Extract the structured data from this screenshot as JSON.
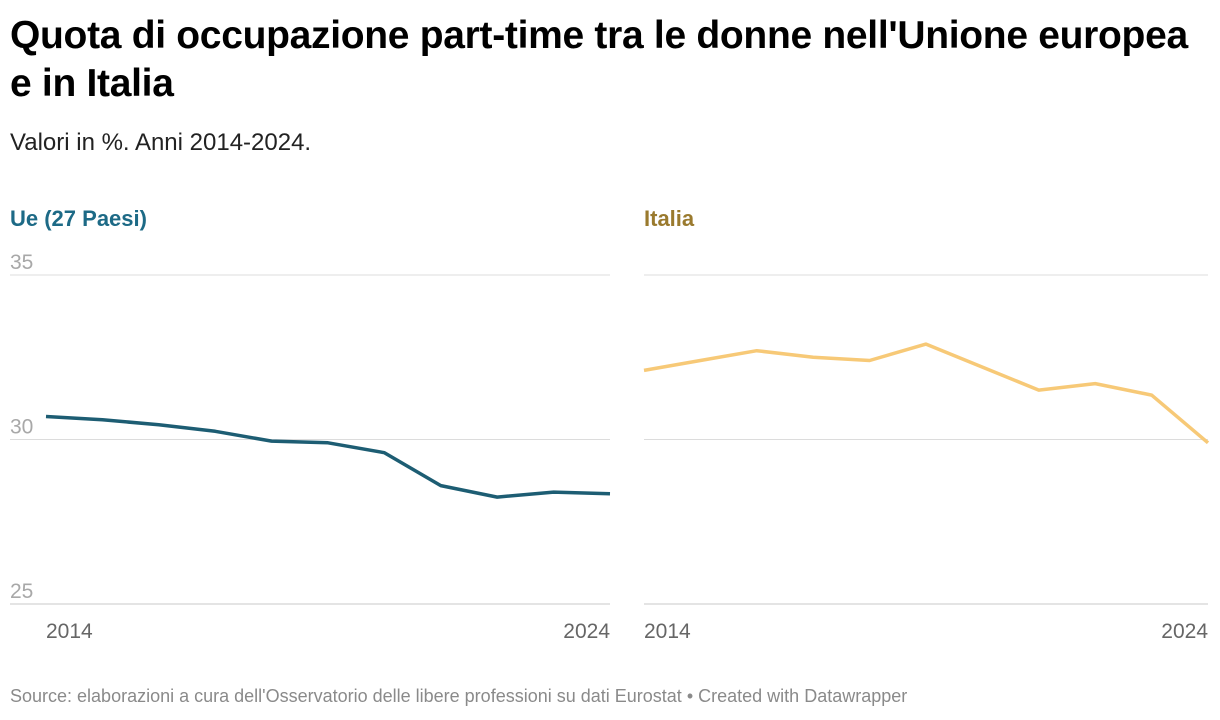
{
  "title": "Quota di occupazione part-time tra le donne nell'Unione europea e in Italia",
  "subtitle": "Valori in %. Anni 2014-2024.",
  "footer": {
    "source": "Source: elaborazioni a cura dell'Osservatorio delle libere professioni su dati Eurostat",
    "separator": "•",
    "credit": "Created with Datawrapper"
  },
  "colors": {
    "eu_line": "#1d5d73",
    "italy_line": "#f7c977",
    "eu_title": "#1d6a86",
    "italy_title": "#9a7a2e",
    "grid": "#dcdcdc",
    "baseline": "#c8c8c8",
    "tick_y": "#a8a8a8",
    "tick_x": "#666666"
  },
  "chart_data": [
    {
      "type": "line",
      "title": "Ue (27 Paesi)",
      "x": [
        2014,
        2015,
        2016,
        2017,
        2018,
        2019,
        2020,
        2021,
        2022,
        2023,
        2024
      ],
      "series": [
        {
          "name": "Ue (27 Paesi)",
          "values": [
            30.7,
            30.6,
            30.45,
            30.25,
            29.95,
            29.9,
            29.6,
            28.6,
            28.25,
            28.4,
            28.35
          ]
        }
      ],
      "x_tick_labels": [
        "2014",
        "2024"
      ],
      "y_ticks": [
        25,
        30,
        35
      ],
      "y_tick_labels": [
        "25",
        "30",
        "35"
      ],
      "ylim": [
        25,
        35
      ],
      "grid": true
    },
    {
      "type": "line",
      "title": "Italia",
      "x": [
        2014,
        2015,
        2016,
        2017,
        2018,
        2019,
        2020,
        2021,
        2022,
        2023,
        2024
      ],
      "series": [
        {
          "name": "Italia",
          "values": [
            32.1,
            32.4,
            32.7,
            32.5,
            32.4,
            32.9,
            32.2,
            31.5,
            31.7,
            31.35,
            29.9
          ]
        }
      ],
      "x_tick_labels": [
        "2014",
        "2024"
      ],
      "y_ticks": [
        25,
        30,
        35
      ],
      "ylim": [
        25,
        35
      ],
      "grid": true
    }
  ]
}
